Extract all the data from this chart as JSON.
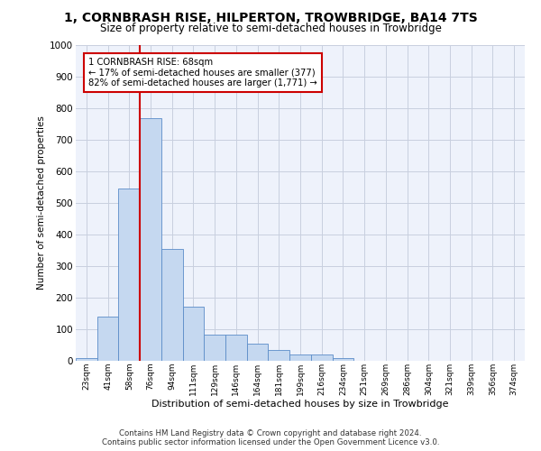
{
  "title": "1, CORNBRASH RISE, HILPERTON, TROWBRIDGE, BA14 7TS",
  "subtitle": "Size of property relative to semi-detached houses in Trowbridge",
  "xlabel": "Distribution of semi-detached houses by size in Trowbridge",
  "ylabel": "Number of semi-detached properties",
  "bin_labels": [
    "23sqm",
    "41sqm",
    "58sqm",
    "76sqm",
    "94sqm",
    "111sqm",
    "129sqm",
    "146sqm",
    "164sqm",
    "181sqm",
    "199sqm",
    "216sqm",
    "234sqm",
    "251sqm",
    "269sqm",
    "286sqm",
    "304sqm",
    "321sqm",
    "339sqm",
    "356sqm",
    "374sqm"
  ],
  "bar_heights": [
    10,
    140,
    545,
    770,
    355,
    172,
    82,
    82,
    53,
    35,
    20,
    20,
    10,
    0,
    0,
    0,
    0,
    0,
    0,
    0,
    0
  ],
  "bar_color": "#c5d8f0",
  "bar_edge_color": "#5b8cc8",
  "vline_color": "#cc0000",
  "annotation_text": "1 CORNBRASH RISE: 68sqm\n← 17% of semi-detached houses are smaller (377)\n82% of semi-detached houses are larger (1,771) →",
  "annotation_box_color": "#cc0000",
  "ylim": [
    0,
    1000
  ],
  "yticks": [
    0,
    100,
    200,
    300,
    400,
    500,
    600,
    700,
    800,
    900,
    1000
  ],
  "footer_line1": "Contains HM Land Registry data © Crown copyright and database right 2024.",
  "footer_line2": "Contains public sector information licensed under the Open Government Licence v3.0.",
  "bg_color": "#eef2fb",
  "grid_color": "#c8cfdf"
}
